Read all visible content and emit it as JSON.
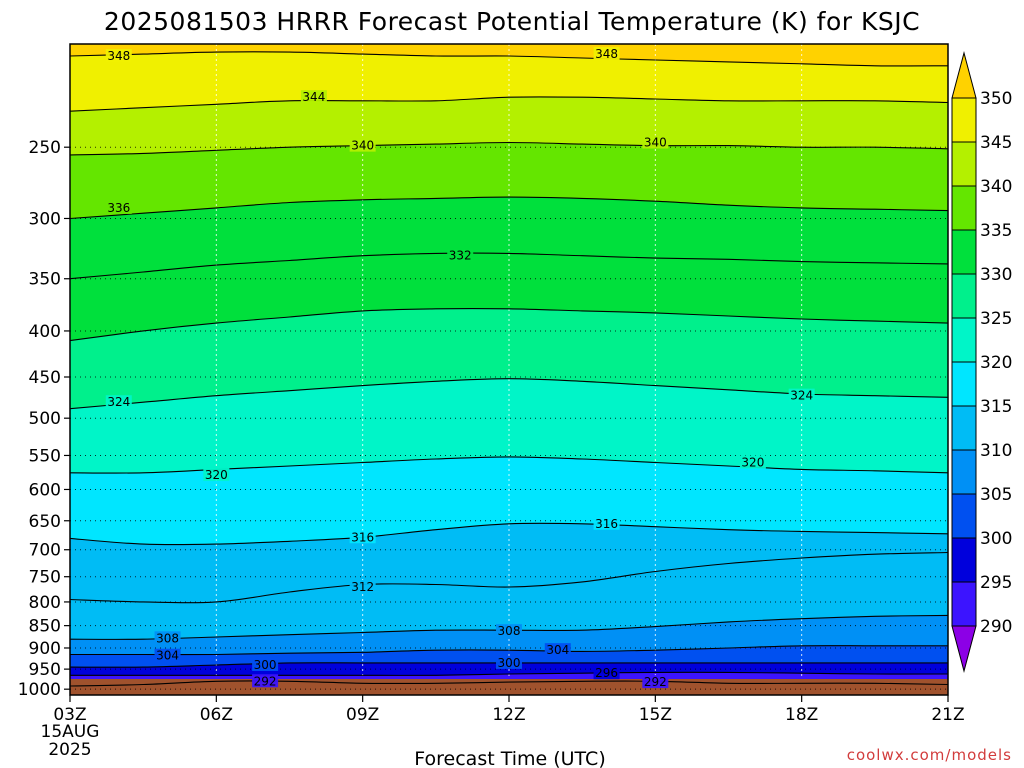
{
  "title": "2025081503 HRRR Forecast Potential Temperature (K) for KSJC",
  "xlabel": "Forecast Time (UTC)",
  "credit": "coolwx.com/models",
  "colors": {
    "credit": "#d23c3c",
    "ground": "#a0522d"
  },
  "x_axis": {
    "ticks": [
      {
        "hour": 0,
        "label": "03Z"
      },
      {
        "hour": 3,
        "label": "06Z"
      },
      {
        "hour": 6,
        "label": "09Z"
      },
      {
        "hour": 9,
        "label": "12Z"
      },
      {
        "hour": 12,
        "label": "15Z"
      },
      {
        "hour": 15,
        "label": "18Z"
      },
      {
        "hour": 18,
        "label": "21Z"
      }
    ],
    "date_line1": "15AUG",
    "date_line2": "2025"
  },
  "chart_data": {
    "type": "heatmap",
    "title": "2025081503 HRRR Forecast Potential Temperature (K) for KSJC",
    "xlabel": "Forecast Time (UTC)",
    "ylabel": "",
    "x_range_hours": [
      0,
      18
    ],
    "y_scale": "log-pressure",
    "y_ticks_hPa": [
      250,
      300,
      350,
      400,
      450,
      500,
      550,
      600,
      650,
      700,
      750,
      800,
      850,
      900,
      950,
      1000
    ],
    "grid": "dotted",
    "colorbar": {
      "levels": [
        290,
        295,
        300,
        305,
        310,
        315,
        320,
        325,
        330,
        335,
        340,
        345,
        350
      ],
      "colors": [
        "#8c00e6",
        "#3c14ff",
        "#0000dc",
        "#0050f0",
        "#0090f5",
        "#00bcf5",
        "#00e6ff",
        "#00f5c8",
        "#00f08c",
        "#00e03c",
        "#64e600",
        "#b4f000",
        "#f0f000",
        "#ffd200"
      ],
      "extend": "both"
    },
    "contour_interval": 4,
    "contours": [
      {
        "theta": 348,
        "y": [
          198,
          197,
          196,
          196,
          197,
          198,
          198,
          199,
          200,
          201,
          202,
          203,
          203
        ]
      },
      {
        "theta": 344,
        "y": [
          228,
          226,
          224,
          222,
          222,
          222,
          220,
          220,
          221,
          222,
          222,
          222,
          223
        ]
      },
      {
        "theta": 340,
        "y": [
          255,
          254,
          252,
          250,
          249,
          248,
          247,
          248,
          249,
          249,
          250,
          250,
          251
        ]
      },
      {
        "theta": 336,
        "y": [
          300,
          296,
          292,
          288,
          286,
          285,
          284,
          285,
          287,
          290,
          292,
          293,
          294
        ]
      },
      {
        "theta": 332,
        "y": [
          350,
          344,
          338,
          334,
          330,
          328,
          328,
          330,
          332,
          333,
          335,
          336,
          337
        ]
      },
      {
        "theta": 328,
        "y": [
          410,
          400,
          392,
          386,
          380,
          378,
          378,
          380,
          382,
          385,
          388,
          390,
          392
        ]
      },
      {
        "theta": 324,
        "y": [
          488,
          480,
          472,
          466,
          460,
          455,
          452,
          455,
          460,
          465,
          470,
          472,
          474
        ]
      },
      {
        "theta": 320,
        "y": [
          575,
          575,
          570,
          565,
          560,
          555,
          552,
          555,
          560,
          565,
          570,
          572,
          575
        ]
      },
      {
        "theta": 316,
        "y": [
          680,
          690,
          690,
          685,
          678,
          665,
          655,
          655,
          660,
          665,
          668,
          670,
          672
        ]
      },
      {
        "theta": 312,
        "y": [
          795,
          800,
          800,
          780,
          765,
          765,
          770,
          760,
          740,
          725,
          715,
          708,
          705
        ]
      },
      {
        "theta": 308,
        "y": [
          880,
          880,
          875,
          870,
          865,
          860,
          860,
          860,
          852,
          842,
          835,
          830,
          828
        ]
      },
      {
        "theta": 304,
        "y": [
          915,
          915,
          915,
          912,
          910,
          905,
          905,
          908,
          905,
          900,
          895,
          895,
          895
        ]
      },
      {
        "theta": 300,
        "y": [
          945,
          945,
          940,
          935,
          935,
          935,
          935,
          935,
          935,
          935,
          935,
          935,
          935
        ]
      },
      {
        "theta": 296,
        "y": [
          965,
          965,
          965,
          965,
          965,
          965,
          962,
          960,
          958,
          958,
          960,
          962,
          962
        ]
      },
      {
        "theta": 292,
        "y": [
          992,
          988,
          980,
          980,
          985,
          985,
          982,
          980,
          980,
          985,
          985,
          985,
          988
        ]
      }
    ],
    "contour_labels": [
      {
        "text": "348",
        "hour": 1.0,
        "hPa": 198
      },
      {
        "text": "348",
        "hour": 11.0,
        "hPa": 197
      },
      {
        "text": "344",
        "hour": 5.0,
        "hPa": 220
      },
      {
        "text": "340",
        "hour": 6.0,
        "hPa": 249
      },
      {
        "text": "340",
        "hour": 12.0,
        "hPa": 247
      },
      {
        "text": "336",
        "hour": 1.0,
        "hPa": 292
      },
      {
        "text": "332",
        "hour": 8.0,
        "hPa": 330
      },
      {
        "text": "324",
        "hour": 1.0,
        "hPa": 480
      },
      {
        "text": "324",
        "hour": 15.0,
        "hPa": 472
      },
      {
        "text": "320",
        "hour": 3.0,
        "hPa": 578
      },
      {
        "text": "320",
        "hour": 14.0,
        "hPa": 560
      },
      {
        "text": "316",
        "hour": 6.0,
        "hPa": 678
      },
      {
        "text": "316",
        "hour": 11.0,
        "hPa": 655
      },
      {
        "text": "312",
        "hour": 6.0,
        "hPa": 770
      },
      {
        "text": "308",
        "hour": 2.0,
        "hPa": 878
      },
      {
        "text": "308",
        "hour": 9.0,
        "hPa": 862
      },
      {
        "text": "304",
        "hour": 2.0,
        "hPa": 918
      },
      {
        "text": "304",
        "hour": 10.0,
        "hPa": 905
      },
      {
        "text": "300",
        "hour": 4.0,
        "hPa": 940
      },
      {
        "text": "300",
        "hour": 9.0,
        "hPa": 935
      },
      {
        "text": "296",
        "hour": 11.0,
        "hPa": 960
      },
      {
        "text": "292",
        "hour": 4.0,
        "hPa": 980
      },
      {
        "text": "292",
        "hour": 12.0,
        "hPa": 982
      }
    ]
  }
}
